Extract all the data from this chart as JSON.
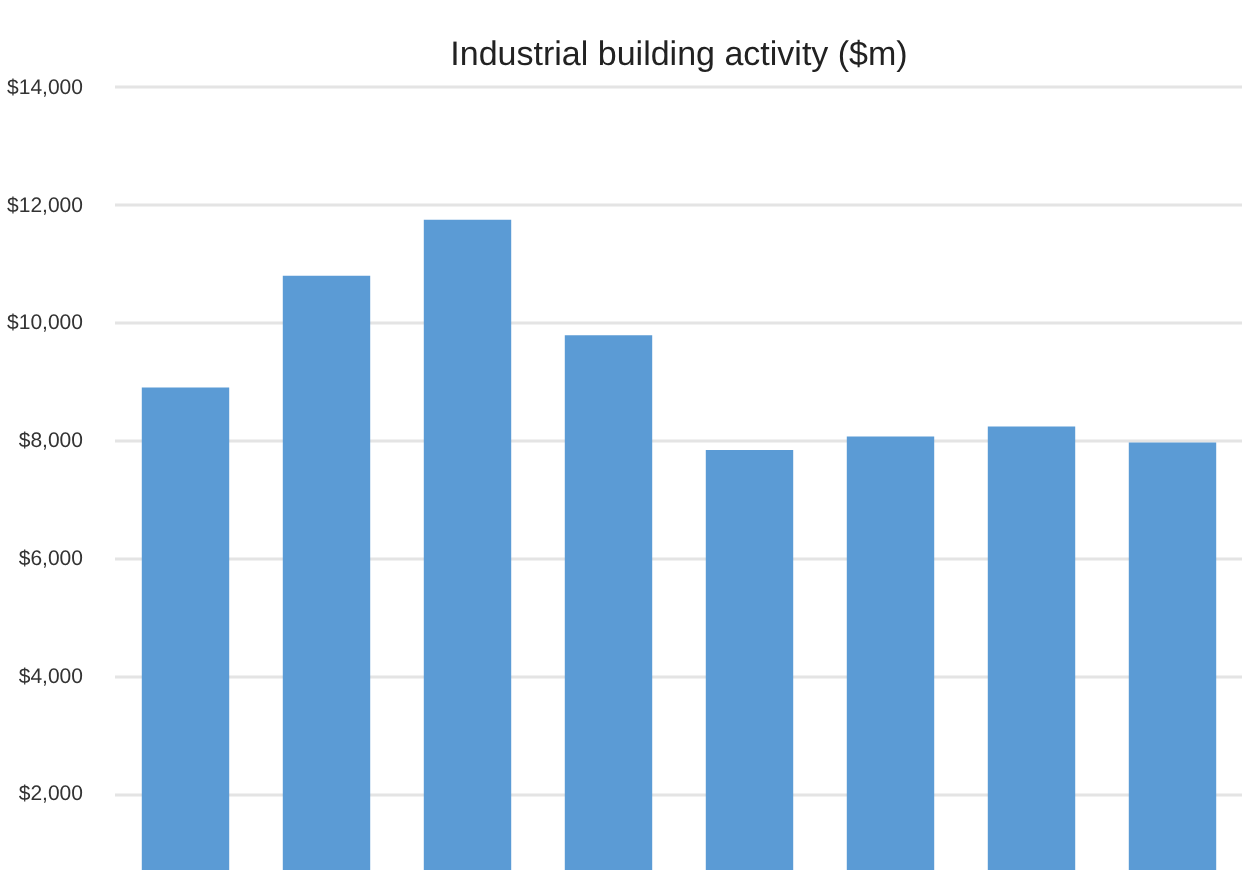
{
  "chart_data": {
    "type": "bar",
    "title": "Industrial building activity ($m)",
    "categories": [
      null,
      null,
      null,
      null,
      null,
      null,
      null,
      null
    ],
    "values": [
      8910,
      10810,
      11760,
      9800,
      7850,
      8080,
      8250,
      7980
    ],
    "color": "#5b9bd5",
    "ylim": [
      700,
      14050
    ],
    "yticks": [
      {
        "value": 2000,
        "label": "$2,000"
      },
      {
        "value": 4000,
        "label": "$4,000"
      },
      {
        "value": 6000,
        "label": "$6,000"
      },
      {
        "value": 8000,
        "label": "$8,000"
      },
      {
        "value": 10000,
        "label": "$10,000"
      },
      {
        "value": 12000,
        "label": "$12,000"
      },
      {
        "value": 14000,
        "label": "$14,000"
      }
    ],
    "grid": "y",
    "tick_labels": "y"
  }
}
